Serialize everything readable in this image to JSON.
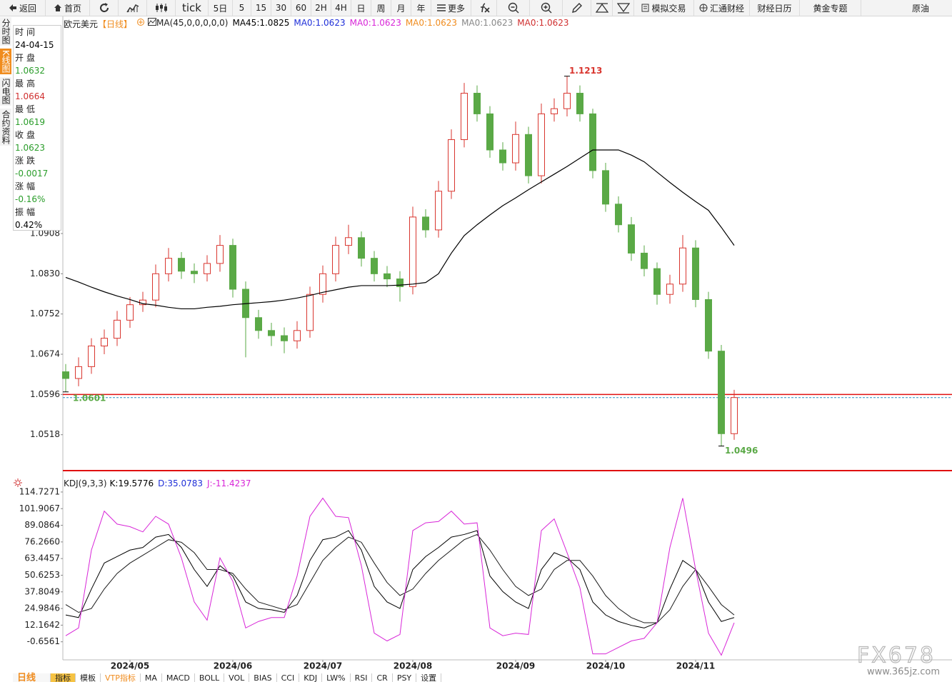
{
  "toolbar": [
    "返回",
    "首页",
    "tick",
    "5日",
    "5",
    "15",
    "30",
    "60",
    "2H",
    "4H",
    "日",
    "周",
    "月",
    "年",
    "更多",
    "模拟交易",
    "汇通财经",
    "财经日历",
    "黄金专题",
    "原油"
  ],
  "side_tabs": [
    {
      "text": "分时图",
      "active": false
    },
    {
      "text": "K线图",
      "active": true
    },
    {
      "text": "闪电图",
      "active": false
    },
    {
      "text": "合约资料",
      "active": false
    }
  ],
  "info_panel": [
    {
      "label": "时间",
      "value": "24-04-15",
      "color": "#000000"
    },
    {
      "label": "开盘",
      "value": "1.0632",
      "color": "#2a9d2a"
    },
    {
      "label": "最高",
      "value": "1.0664",
      "color": "#d03030"
    },
    {
      "label": "最低",
      "value": "1.0619",
      "color": "#2a9d2a"
    },
    {
      "label": "收盘",
      "value": "1.0623",
      "color": "#2a9d2a"
    },
    {
      "label": "涨跌",
      "value": "-0.0017",
      "color": "#2a9d2a"
    },
    {
      "label": "涨幅",
      "value": "-0.16%",
      "color": "#2a9d2a"
    },
    {
      "label": "振幅",
      "value": "0.42%",
      "color": "#000000"
    }
  ],
  "chart_data": [
    {
      "type": "candlestick",
      "title": "欧元美元",
      "period": "【日线】",
      "indicator": "MA(45,0,0,0,0,0)",
      "ma_labels": [
        {
          "text": "MA45:1.0825",
          "color": "#000000"
        },
        {
          "text": "MA0:1.0623",
          "color": "#1f2fd8"
        },
        {
          "text": "MA0:1.0623",
          "color": "#d826d8"
        },
        {
          "text": "MA0:1.0623",
          "color": "#f08c1e"
        },
        {
          "text": "MA0:1.0623",
          "color": "#888888"
        },
        {
          "text": "MA0:1.0623",
          "color": "#d03030"
        }
      ],
      "up_color": "#d9362f",
      "down_color": "#5aa946",
      "ma_color": "#000000",
      "open": [
        1.064,
        1.0627,
        1.065,
        1.069,
        1.0705,
        1.074,
        1.077,
        1.0779,
        1.083,
        1.086,
        1.0835,
        1.083,
        1.085,
        1.0885,
        1.08,
        1.0745,
        1.072,
        1.071,
        1.07,
        1.072,
        1.079,
        1.083,
        1.0885,
        1.09,
        1.086,
        1.083,
        1.082,
        1.0805,
        1.094,
        1.0915,
        1.099,
        1.109,
        1.118,
        1.114,
        1.107,
        1.1045,
        1.11,
        1.102,
        1.114,
        1.115,
        1.118,
        1.114,
        1.103,
        1.0965,
        1.0925,
        1.087,
        1.084,
        1.079,
        1.081,
        1.088,
        1.078,
        1.068,
        1.052
      ],
      "high": [
        1.0655,
        1.0668,
        1.0705,
        1.0722,
        1.0758,
        1.0785,
        1.0795,
        1.0848,
        1.088,
        1.0872,
        1.085,
        1.0866,
        1.0905,
        1.0898,
        1.0815,
        1.076,
        1.0735,
        1.0726,
        1.0738,
        1.0805,
        1.0846,
        1.0902,
        1.0925,
        1.0912,
        1.0874,
        1.0845,
        1.0835,
        1.096,
        1.0955,
        1.101,
        1.111,
        1.12,
        1.1195,
        1.1155,
        1.1085,
        1.1125,
        1.1115,
        1.116,
        1.117,
        1.1213,
        1.1195,
        1.115,
        1.1045,
        1.098,
        1.094,
        1.0885,
        1.0852,
        1.0828,
        1.0905,
        1.0895,
        1.0795,
        1.0692,
        1.0605
      ],
      "low": [
        1.0601,
        1.0612,
        1.0636,
        1.0674,
        1.069,
        1.0725,
        1.0756,
        1.0765,
        1.0815,
        1.082,
        1.0812,
        1.0815,
        1.0834,
        1.0784,
        1.0668,
        1.0704,
        1.069,
        1.0676,
        1.0685,
        1.0706,
        1.0774,
        1.0815,
        1.0868,
        1.0844,
        1.0815,
        1.0804,
        1.0776,
        1.079,
        1.09,
        1.09,
        1.0975,
        1.1075,
        1.1125,
        1.1055,
        1.103,
        1.103,
        1.1005,
        1.1005,
        1.1125,
        1.1135,
        1.1125,
        1.1015,
        1.095,
        1.091,
        1.0855,
        1.0825,
        1.077,
        1.0772,
        1.0795,
        1.0765,
        1.0665,
        1.0496,
        1.0508
      ],
      "close": [
        1.0627,
        1.065,
        1.069,
        1.0705,
        1.074,
        1.077,
        1.0779,
        1.083,
        1.086,
        1.0835,
        1.083,
        1.085,
        1.0885,
        1.08,
        1.0745,
        1.072,
        1.071,
        1.07,
        1.072,
        1.079,
        1.083,
        1.0885,
        1.09,
        1.086,
        1.083,
        1.082,
        1.0805,
        1.094,
        1.0915,
        1.099,
        1.109,
        1.118,
        1.114,
        1.107,
        1.1045,
        1.11,
        1.102,
        1.114,
        1.115,
        1.118,
        1.114,
        1.103,
        1.0965,
        1.0925,
        1.087,
        1.084,
        1.079,
        1.081,
        1.088,
        1.078,
        1.068,
        1.052,
        1.059
      ],
      "ma45": [
        1.0823,
        1.0814,
        1.0804,
        1.0795,
        1.0787,
        1.078,
        1.0772,
        1.0769,
        1.0765,
        1.0762,
        1.0762,
        1.0765,
        1.0767,
        1.077,
        1.0772,
        1.0774,
        1.0776,
        1.0779,
        1.0783,
        1.0788,
        1.0794,
        1.0799,
        1.0804,
        1.0807,
        1.0807,
        1.0807,
        1.0808,
        1.081,
        1.0813,
        1.083,
        1.087,
        1.0904,
        1.0925,
        1.0944,
        1.0962,
        1.0977,
        1.0993,
        1.1008,
        1.1023,
        1.1038,
        1.1054,
        1.107,
        1.107,
        1.107,
        1.106,
        1.1047,
        1.1027,
        1.1007,
        1.0988,
        1.097,
        1.0953,
        1.092,
        1.0885
      ],
      "reference_line": {
        "value": 1.0596,
        "color": "#e01010"
      },
      "last_price_color": "#2a8fc0",
      "ylim": [
        1.0447,
        1.1333
      ],
      "yticks": [
        1.0908,
        {
          "value": 1.083,
          "label": "1.0830"
        },
        1.0752,
        1.0674,
        1.0596,
        1.0518
      ]
    },
    {
      "type": "line",
      "title": "KDJ(9,3,3)",
      "header_values": [
        {
          "text": "K:19.5776",
          "color": "#000000"
        },
        {
          "text": "D:35.0783",
          "color": "#1f2fd8"
        },
        {
          "text": "J:-11.4237",
          "color": "#d826d8"
        }
      ],
      "categories": [
        null,
        null,
        null,
        null,
        null,
        "2024/05",
        null,
        null,
        null,
        null,
        null,
        null,
        null,
        "2024/06",
        null,
        null,
        null,
        null,
        null,
        null,
        "2024/07",
        null,
        null,
        null,
        null,
        null,
        null,
        "2024/08",
        null,
        null,
        null,
        null,
        null,
        null,
        null,
        "2024/09",
        null,
        null,
        null,
        null,
        null,
        null,
        "2024/10",
        null,
        null,
        null,
        null,
        null,
        null,
        "2024/11",
        null,
        null,
        null
      ],
      "series": [
        {
          "color": "#000000",
          "values": [
            20,
            18,
            40,
            60,
            65,
            70,
            72,
            80,
            82,
            72,
            55,
            42,
            58,
            50,
            30,
            25,
            24,
            22,
            35,
            62,
            78,
            80,
            85,
            70,
            42,
            30,
            25,
            55,
            65,
            72,
            80,
            82,
            85,
            50,
            38,
            30,
            25,
            55,
            68,
            64,
            55,
            30,
            20,
            15,
            12,
            10,
            14,
            40,
            62,
            55,
            30,
            15,
            18
          ]
        },
        {
          "color": "#1a1a1a",
          "values": [
            28,
            22,
            25,
            40,
            52,
            60,
            66,
            72,
            78,
            76,
            68,
            55,
            55,
            52,
            40,
            30,
            27,
            24,
            28,
            45,
            62,
            72,
            80,
            76,
            60,
            45,
            35,
            40,
            52,
            62,
            70,
            78,
            82,
            70,
            55,
            42,
            35,
            40,
            55,
            62,
            62,
            50,
            35,
            25,
            18,
            14,
            14,
            24,
            42,
            55,
            42,
            28,
            20
          ]
        },
        {
          "color": "#d826d8",
          "values": [
            4,
            10,
            70,
            100,
            90,
            88,
            84,
            96,
            90,
            64,
            30,
            16,
            64,
            46,
            10,
            15,
            18,
            18,
            50,
            96,
            110,
            96,
            95,
            58,
            6,
            0,
            5,
            85,
            91,
            92,
            100,
            90,
            91,
            10,
            4,
            6,
            5,
            85,
            94,
            68,
            41,
            -10,
            -10,
            -5,
            0,
            2,
            14,
            72,
            110,
            55,
            6,
            -11,
            14
          ]
        }
      ],
      "ylim": [
        -13.48,
        118
      ],
      "yticks": [
        114.7271,
        101.9067,
        89.0864,
        {
          "value": 76.266,
          "label": "76.2660"
        },
        63.4457,
        50.6253,
        37.8049,
        24.9846,
        12.1642,
        -0.6561
      ]
    }
  ],
  "bottom_tabs": {
    "period": "日线 ▲",
    "tabs": [
      "指标",
      "模板",
      "VTP指标",
      "MA",
      "MACD",
      "BOLL",
      "VOL",
      "BIAS",
      "CCI",
      "KDJ",
      "LW%",
      "RSI",
      "CR",
      "PSY",
      "设置"
    ]
  },
  "watermark": {
    "logo": "FX678",
    "url": "www.365jz.com"
  }
}
